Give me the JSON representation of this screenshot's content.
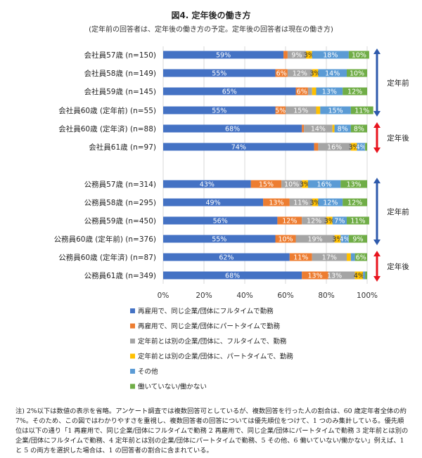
{
  "chart_data": {
    "type": "bar",
    "orientation": "horizontal",
    "stacked": true,
    "title": "図4. 定年後の働き方",
    "subtitle": "(定年前の回答者は、定年後の働き方の予定。定年後の回答者は現在の働き方)",
    "xlim": [
      0,
      100
    ],
    "xticks": [
      "0%",
      "20%",
      "40%",
      "60%",
      "80%",
      "100%"
    ],
    "categories": [
      "会社員57歳 (n=150)",
      "会社員58歳 (n=149)",
      "会社員59歳 (n=145)",
      "会社員60歳 (定年前) (n=55)",
      "会社員60歳 (定年済) (n=88)",
      "会社員61歳 (n=97)",
      "公務員57歳 (n=314)",
      "公務員58歳 (n=295)",
      "公務員59歳 (n=450)",
      "公務員60歳 (定年前) (n=376)",
      "公務員60歳 (定年済) (n=87)",
      "公務員61歳 (n=349)"
    ],
    "series": [
      {
        "name": "再雇用で、同じ企業/団体にフルタイムで勤務",
        "color": "#4472C4",
        "values": [
          59,
          55,
          65,
          55,
          68,
          74,
          43,
          49,
          56,
          55,
          62,
          68
        ],
        "labels": [
          "59%",
          "55%",
          "65%",
          "55%",
          "68%",
          "74%",
          "43%",
          "49%",
          "56%",
          "55%",
          "62%",
          "68%"
        ]
      },
      {
        "name": "再雇用で、同じ企業/団体にパートタイムで勤務",
        "color": "#ED7D31",
        "values": [
          2,
          6,
          6,
          5,
          1,
          2,
          15,
          13,
          12,
          10,
          11,
          13
        ],
        "labels": [
          "",
          "6%",
          "6%",
          "5%",
          "",
          "",
          "15%",
          "13%",
          "12%",
          "10%",
          "11%",
          "13%"
        ]
      },
      {
        "name": "定年前とは別の企業/団体に、フルタイムで、勤務",
        "color": "#A5A5A5",
        "values": [
          9,
          12,
          2,
          15,
          14,
          16,
          10,
          11,
          12,
          19,
          17,
          13
        ],
        "labels": [
          "9%",
          "12%",
          "",
          "15%",
          "14%",
          "16%",
          "10%",
          "11%",
          "12%",
          "19%",
          "17%",
          ""
        ]
      },
      {
        "name": "定年前とは別の企業/団体に、パートタイムで、勤務",
        "color": "#FFC000",
        "values": [
          3,
          3,
          2,
          2,
          1,
          3,
          3,
          3,
          3,
          3,
          2,
          4
        ],
        "labels": [
          "3%",
          "3%",
          "",
          "",
          "",
          "3%",
          "3%",
          "3%",
          "3%",
          "3%",
          "",
          "4%"
        ]
      },
      {
        "name": "その他",
        "color": "#5B9BD5",
        "values": [
          18,
          14,
          13,
          15,
          8,
          4,
          16,
          12,
          7,
          4,
          2,
          1
        ],
        "labels": [
          "18%",
          "14%",
          "13%",
          "15%",
          "8%",
          "4%",
          "16%",
          "12%",
          "7%",
          "4%",
          "",
          ""
        ]
      },
      {
        "name": "働いていない/働かない",
        "color": "#70AD47",
        "values": [
          10,
          10,
          12,
          11,
          8,
          1,
          13,
          12,
          11,
          9,
          6,
          1
        ],
        "labels": [
          "10%",
          "10%",
          "12%",
          "11%",
          "8%",
          "",
          "13%",
          "12%",
          "11%",
          "9%",
          "6%",
          ""
        ]
      }
    ],
    "inline_labels": {
      "row_12_gray": "13%"
    },
    "groups": [
      {
        "label": "定年前",
        "rows": [
          0,
          3
        ],
        "color": "#2E5AAC"
      },
      {
        "label": "定年後",
        "rows": [
          4,
          5
        ],
        "color": "#E8141E"
      },
      {
        "label": "定年前",
        "rows": [
          6,
          9
        ],
        "color": "#2E5AAC"
      },
      {
        "label": "定年後",
        "rows": [
          10,
          11
        ],
        "color": "#E8141E"
      }
    ]
  },
  "note": "注) 2%以下は数値の表示を省略。アンケート調査では複数回答可としているが、複数回答を行った人の割合は、60 歳定年者全体の約 7%。そのため、この図ではわかりやすさを重視し、複数回答者の回答については優先順位をつけて、1 つのみ集計している。優先順位は以下の通り「1 再雇用で、同じ企業/団体にフルタイムで勤務 2 再雇用で、同じ企業/団体にパートタイムで勤務 3 定年前とは別の企業/団体にフルタイムで勤務、4 定年前とは別の企業/団体にパートタイムで勤務、5 その他、6 働いていない/働かない」例えば、1 と 5 の両方を選択した場合は、1 の回答者の割合に含まれている。"
}
